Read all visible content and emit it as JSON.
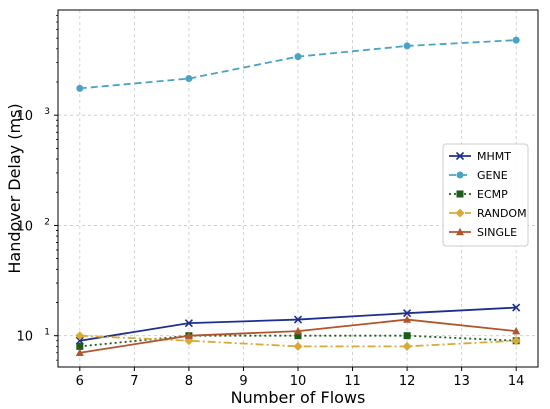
{
  "chart_data": {
    "type": "line",
    "xlabel": "Number of Flows",
    "ylabel": "Handover Delay (ms)",
    "x": [
      6,
      8,
      10,
      12,
      14
    ],
    "xticks": [
      6,
      7,
      8,
      9,
      10,
      11,
      12,
      13,
      14
    ],
    "xlim": [
      5.6,
      14.4
    ],
    "yscale": "log",
    "ylim": [
      5.2,
      9000
    ],
    "yticks": [
      {
        "value": 10,
        "base": "10",
        "exp": "1"
      },
      {
        "value": 100,
        "base": "10",
        "exp": "2"
      },
      {
        "value": 1000,
        "base": "10",
        "exp": "3"
      }
    ],
    "grid": true,
    "legend_position": "center-right",
    "series": [
      {
        "name": "MHMT",
        "color": "#1f2f8f",
        "dash": "",
        "marker": "x",
        "values": [
          9,
          13,
          14,
          16,
          18
        ]
      },
      {
        "name": "GENE",
        "color": "#4aa3c4",
        "dash": "7,4",
        "marker": "circle",
        "values": [
          1750,
          2150,
          3400,
          4250,
          4800
        ]
      },
      {
        "name": "ECMP",
        "color": "#1a5e1a",
        "dash": "2,3",
        "marker": "square",
        "values": [
          8,
          10,
          10,
          10,
          9
        ]
      },
      {
        "name": "RANDOM",
        "color": "#d9a93a",
        "dash": "8,3,2,3",
        "marker": "diamond",
        "values": [
          10,
          9,
          8,
          8,
          9
        ]
      },
      {
        "name": "SINGLE",
        "color": "#b0552e",
        "dash": "",
        "marker": "triangle",
        "values": [
          7,
          10,
          11,
          14,
          11
        ]
      }
    ]
  }
}
